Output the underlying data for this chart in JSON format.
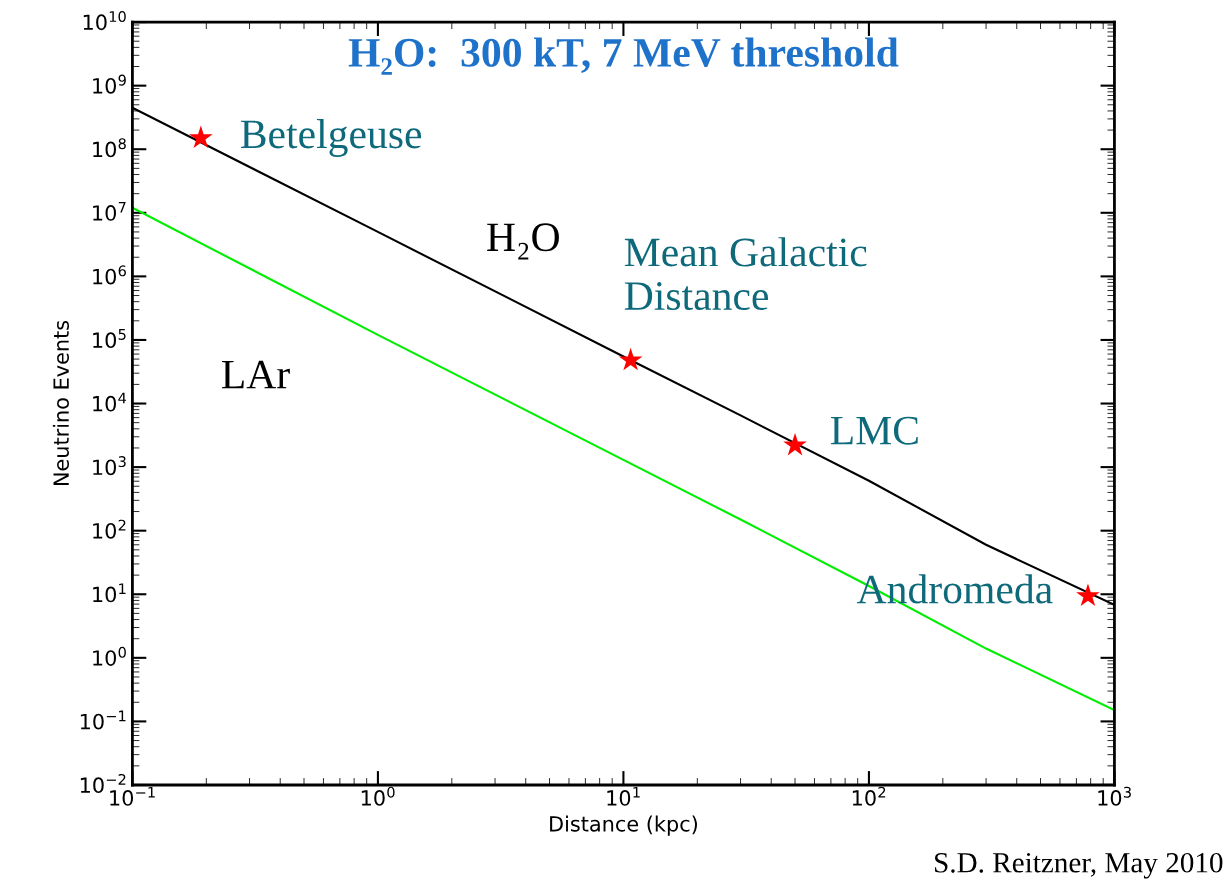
{
  "chart_data": {
    "type": "line",
    "title": "H₂O:  300 kT, 7 MeV threshold",
    "xlabel": "Distance (kpc)",
    "ylabel": "Neutrino Events",
    "log": "xy",
    "grid": false,
    "xlim": [
      0.1,
      1000
    ],
    "ylim": [
      0.01,
      10000000000
    ],
    "xticks": [
      {
        "value": 0.1,
        "label": "10$^{−1}$"
      },
      {
        "value": 1,
        "label": "10$^{0}$"
      },
      {
        "value": 10,
        "label": "10$^{1}$"
      },
      {
        "value": 100,
        "label": "10$^{2}$"
      },
      {
        "value": 1000,
        "label": "10$^{3}$"
      }
    ],
    "yticks": [
      {
        "value": 0.01,
        "label": "10$^{−2}$"
      },
      {
        "value": 0.1,
        "label": "10$^{−1}$"
      },
      {
        "value": 1,
        "label": "10$^{0}$"
      },
      {
        "value": 10,
        "label": "10$^{1}$"
      },
      {
        "value": 100,
        "label": "10$^{2}$"
      },
      {
        "value": 1000,
        "label": "10$^{3}$"
      },
      {
        "value": 10000,
        "label": "10$^{4}$"
      },
      {
        "value": 100000,
        "label": "10$^{5}$"
      },
      {
        "value": 1000000,
        "label": "10$^{6}$"
      },
      {
        "value": 10000000,
        "label": "10$^{7}$"
      },
      {
        "value": 100000000,
        "label": "10$^{8}$"
      },
      {
        "value": 1000000000,
        "label": "10$^{9}$"
      },
      {
        "value": 10000000000,
        "label": "10$^{10}$"
      }
    ],
    "series": [
      {
        "name": "H₂O",
        "color": "#000000",
        "x": [
          0.1,
          1,
          10,
          30,
          100,
          300,
          1000
        ],
        "values": [
          450000000,
          5000000,
          55000,
          6500,
          610,
          60,
          6.8
        ]
      },
      {
        "name": "LAr",
        "color": "#00ee00",
        "x": [
          0.1,
          1,
          10,
          30,
          100,
          300,
          1000
        ],
        "values": [
          12000000,
          120000,
          1300,
          150,
          13.5,
          1.4,
          0.15
        ]
      },
      {
        "type": "scatter",
        "marker": "star",
        "color": "#ff0000",
        "x": [
          0.19,
          10.7,
          50,
          780
        ],
        "values": [
          150000000,
          48000,
          2200,
          9.4
        ]
      }
    ],
    "annotations": [
      {
        "text": "Betelgeuse",
        "x": 0.19,
        "y": 150000000
      },
      {
        "text": "Mean Galactic\nDistance",
        "x": 10.7,
        "y": 48000
      },
      {
        "text": "LMC",
        "x": 50,
        "y": 2200
      },
      {
        "text": "Andromeda",
        "x": 780,
        "y": 9.4
      },
      "S.D. Reitzner, May 2010"
    ]
  }
}
